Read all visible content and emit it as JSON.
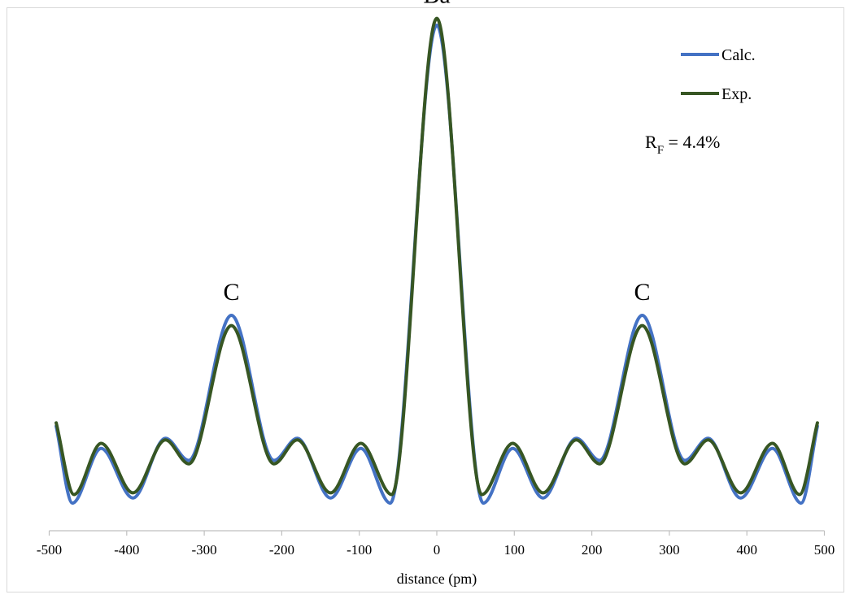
{
  "chart_data": {
    "type": "line",
    "xlabel": "distance (pm)",
    "ylabel": "",
    "xlim": [
      -500,
      500
    ],
    "xticks": [
      "-500",
      "-400",
      "-300",
      "-200",
      "-100",
      "0",
      "100",
      "200",
      "300",
      "400",
      "500"
    ],
    "grid": false,
    "legend_position": "top-right",
    "series": [
      {
        "name": "Calc.",
        "color": "#4472c4",
        "x": [
          -491,
          -470,
          -433,
          -392,
          -350,
          -320,
          -265,
          -210,
          -180,
          -137,
          -98,
          -60,
          0,
          60,
          98,
          137,
          180,
          210,
          265,
          320,
          350,
          392,
          433,
          470,
          491
        ],
        "y": [
          0.35,
          -0.1,
          0.22,
          -0.07,
          0.28,
          0.15,
          1.0,
          0.15,
          0.28,
          -0.07,
          0.22,
          -0.1,
          2.7,
          -0.1,
          0.22,
          -0.07,
          0.28,
          0.15,
          1.0,
          0.15,
          0.28,
          -0.07,
          0.22,
          -0.1,
          0.35
        ]
      },
      {
        "name": "Exp.",
        "color": "#375623",
        "x": [
          -491,
          -468,
          -433,
          -392,
          -350,
          -320,
          -265,
          -210,
          -180,
          -137,
          -98,
          -58,
          0,
          58,
          98,
          137,
          180,
          210,
          265,
          320,
          350,
          392,
          433,
          468,
          491
        ],
        "y": [
          0.37,
          -0.05,
          0.25,
          -0.04,
          0.27,
          0.13,
          0.94,
          0.13,
          0.27,
          -0.04,
          0.25,
          -0.05,
          2.74,
          -0.05,
          0.25,
          -0.04,
          0.27,
          0.13,
          0.94,
          0.13,
          0.27,
          -0.04,
          0.25,
          -0.05,
          0.37
        ]
      }
    ],
    "annotations": [
      {
        "text": "Ba",
        "x": 0,
        "y": 2.74
      },
      {
        "text": "C",
        "x": -265,
        "y": 1.0
      },
      {
        "text": "C",
        "x": 265,
        "y": 1.0
      }
    ],
    "rf_label": {
      "main": "R",
      "sub": "F",
      "rest": " = 4.4%"
    }
  }
}
